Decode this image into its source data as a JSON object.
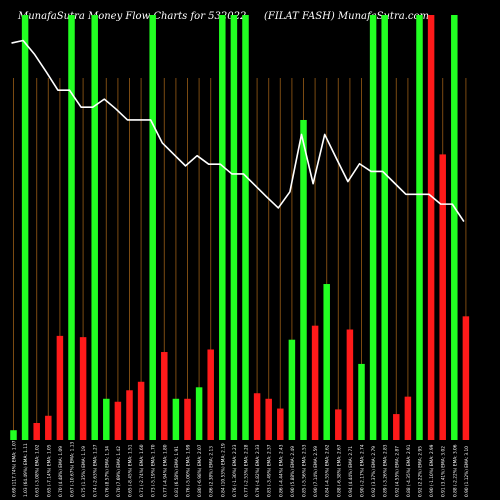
{
  "header": {
    "left": "MunafaSutra  Money Flow  Charts for 532022",
    "right": "(FILAT FASH) MunafaSutra.com"
  },
  "chart_data": {
    "type": "bar",
    "title": "MunafaSutra  Money Flow  Charts for 532022",
    "subtitle": "(FILAT FASH) MunafaSutra.com",
    "colors": {
      "up": "#22ff22",
      "down": "#ff1a1a",
      "background": "#000000",
      "grid": "#7a4a12",
      "line": "#ffffff"
    },
    "ylim": [
      0,
      100
    ],
    "grid": true,
    "categories": [
      "Wed 13 Jul 2022",
      "Tue 12 Jul 2022",
      "Mon 11 Jul 2022",
      "Fri 08 Jul 2022",
      "Thu 07 Jul 2022",
      "Wed 06 Jul 2022",
      "Tue 05 Jul 2022",
      "Mon 04 Jul 2022",
      "Fri 01 Jul 2022",
      "Thu 30 Jun 2022",
      "Wed 29 Jun 2022",
      "Tue 28 Jun 2022",
      "Mon 27 Jun 2022",
      "Fri 24 Jun 2022",
      "Thu 23 Jun 2022",
      "Wed 22 Jun 2022",
      "Tue 21 Jun 2022",
      "Mon 20 Jun 2022",
      "Fri 17 Jun 2022",
      "Thu 16 Jun 2022",
      "Wed 15 Jun 2022",
      "Tue 14 Jun 2022",
      "Mon 13 Jun 2022",
      "Fri 10 Jun 2022",
      "Thu 09 Jun 2022",
      "Wed 08 Jun 2022",
      "Tue 07 Jun 2022",
      "Mon 06 Jun 2022",
      "Fri 03 Jun 2022",
      "Thu 02 Jun 2022",
      "Wed 01 Jun 2022",
      "Tue 31 May 2022",
      "Mon 30 May 2022",
      "Fri 27 May 2022",
      "Thu 26 May 2022",
      "Wed 25 May 2022",
      "Tue 24 May 2022",
      "Mon 23 May 2022",
      "Fri 20 May 2022",
      "Thu 19 May 2022"
    ],
    "tick_labels": [
      "0.69 (117.74%)  EMA: 1.07",
      "1.03 (64.49%)  EMA: 1.11",
      "0.63 (-3.08%)  EMA: 1.02",
      "0.65 (-7.14%)  EMA: 1.05",
      "0.70 (4.48%)  EMA: 1.09",
      "0.67 (-10.67%)  EMA: 1.13",
      "0.75 (1.35%)  EMA: 1.19",
      "0.74 (-2.63%)  EMA: 1.27",
      "0.76 (8.57%)  EMA: 1.34",
      "0.70 (7.69%)  EMA: 1.42",
      "0.65 (-8.45%)  EMA: 1.51",
      "0.71 (-2.74%)  EMA: 1.60",
      "0.73 (-5.19%)  EMA: 1.70",
      "0.77 (-4.94%)  EMA: 1.80",
      "0.81 (6.58%)  EMA: 1.91",
      "0.76 (-5.00%)  EMA: 1.99",
      "0.80 (-6.98%)  EMA: 2.07",
      "0.86 (2.38%)  EMA: 2.13",
      "0.84 (10.53%)  EMA: 2.19",
      "0.76 (-1.30%)  EMA: 2.23",
      "0.77 (-2.53%)  EMA: 2.28",
      "0.79 (-4.82%)  EMA: 2.33",
      "0.83 (-3.49%)  EMA: 2.37",
      "0.86 (-4.44%)  EMA: 2.43",
      "0.90 (5.88%)  EMA: 2.49",
      "0.85 (-5.56%)  EMA: 2.53",
      "0.90 (7.14%)  EMA: 2.59",
      "0.84 (-4.55%)  EMA: 2.62",
      "0.88 (-6.38%)  EMA: 2.67",
      "0.94 (4.44%)  EMA: 2.71",
      "0.90 (-2.17%)  EMA: 2.74",
      "0.92 (3.37%)  EMA: 2.79",
      "0.89 (-3.26%)  EMA: 2.83",
      "0.92 (4.55%)  EMA: 2.87",
      "0.88 (-4.35%)  EMA: 2.91",
      "0.92 (2.22%)  EMA: 2.95",
      "0.90 (-1.10%)  EMA: 2.99",
      "0.91 (3.41%)  EMA: 3.02",
      "0.88 (-2.22%)  EMA: 3.06",
      "0.90 (1.12%)  EMA: 3.10"
    ],
    "series": [
      {
        "kind": "bar",
        "values": [
          2.3,
          100,
          4,
          5.7,
          24.5,
          100,
          24.2,
          100,
          9.7,
          9,
          11.7,
          13.7,
          100,
          20.7,
          9.7,
          9.7,
          12.4,
          21.3,
          100,
          100,
          100,
          11,
          9.7,
          7.4,
          23.6,
          75.3,
          26.9,
          36.7,
          7.2,
          26,
          17.9,
          100,
          100,
          6.1,
          10.2,
          100,
          100,
          67.2,
          100,
          29.1
        ],
        "direction": [
          "up",
          "up",
          "down",
          "down",
          "down",
          "up",
          "down",
          "up",
          "up",
          "down",
          "down",
          "down",
          "up",
          "down",
          "up",
          "down",
          "up",
          "down",
          "up",
          "up",
          "up",
          "down",
          "down",
          "down",
          "up",
          "up",
          "down",
          "up",
          "down",
          "down",
          "up",
          "up",
          "up",
          "down",
          "down",
          "up",
          "down",
          "down",
          "up",
          "down"
        ]
      },
      {
        "kind": "line",
        "values": [
          93.4,
          94.0,
          90.7,
          86.6,
          82.3,
          82.3,
          78.3,
          78.3,
          80.2,
          77.9,
          75.3,
          75.3,
          75.3,
          69.9,
          67.2,
          64.5,
          66.9,
          64.9,
          64.9,
          62.6,
          62.6,
          59.9,
          57.2,
          54.6,
          58.4,
          71.9,
          60.3,
          71.9,
          66.3,
          60.8,
          65.0,
          63.2,
          63.2,
          60.5,
          57.8,
          57.8,
          57.8,
          55.5,
          55.5,
          51.4
        ]
      }
    ]
  }
}
